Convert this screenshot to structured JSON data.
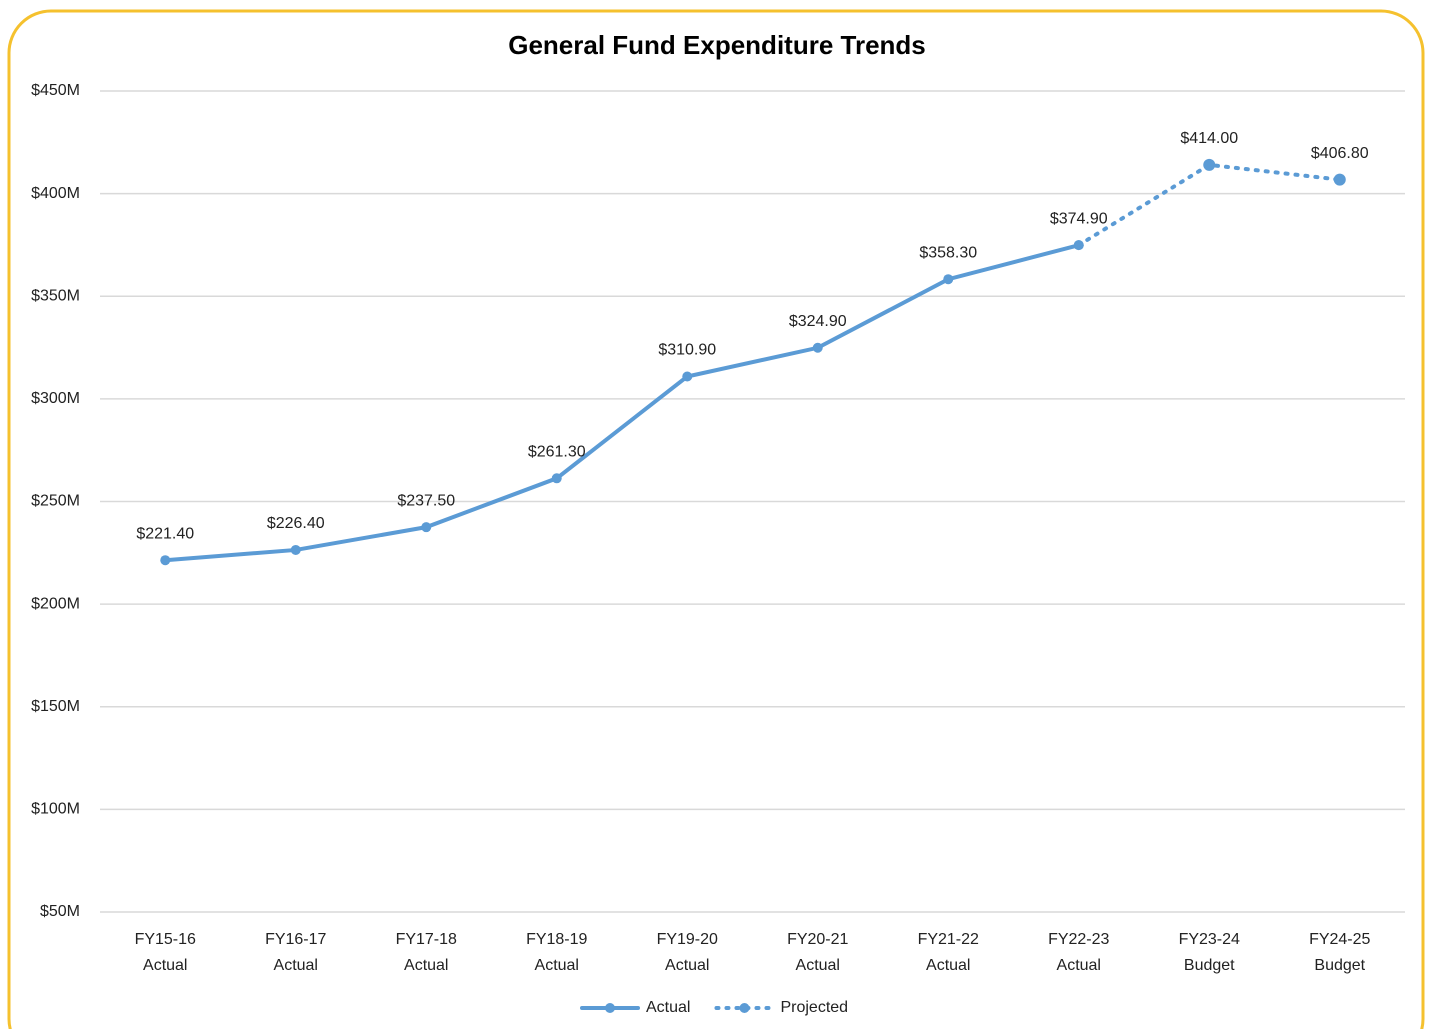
{
  "chart_data": {
    "type": "line",
    "title": "General Fund Expenditure Trends",
    "categories": [
      [
        "FY15-16",
        "Actual"
      ],
      [
        "FY16-17",
        "Actual"
      ],
      [
        "FY17-18",
        "Actual"
      ],
      [
        "FY18-19",
        "Actual"
      ],
      [
        "FY19-20",
        "Actual"
      ],
      [
        "FY20-21",
        "Actual"
      ],
      [
        "FY21-22",
        "Actual"
      ],
      [
        "FY22-23",
        "Actual"
      ],
      [
        "FY23-24",
        "Budget"
      ],
      [
        "FY24-25",
        "Budget"
      ]
    ],
    "series": [
      {
        "name": "Actual",
        "color": "#5b9bd5",
        "dash": "solid",
        "values": [
          221.4,
          226.4,
          237.5,
          261.3,
          310.9,
          324.9,
          358.3,
          374.9,
          null,
          null
        ],
        "value_labels": [
          "$221.40",
          "$226.40",
          "$237.50",
          "$261.30",
          "$310.90",
          "$324.90",
          "$358.30",
          "$374.90",
          null,
          null
        ]
      },
      {
        "name": "Projected",
        "color": "#5b9bd5",
        "dash": "dotted",
        "values": [
          null,
          null,
          null,
          null,
          null,
          null,
          null,
          374.9,
          414.0,
          406.8
        ],
        "value_labels": [
          null,
          null,
          null,
          null,
          null,
          null,
          null,
          null,
          "$414.00",
          "$406.80"
        ]
      }
    ],
    "ylim": [
      50,
      450
    ],
    "yticks": [
      {
        "value": 50,
        "label": "$50M"
      },
      {
        "value": 100,
        "label": "$100M"
      },
      {
        "value": 150,
        "label": "$150M"
      },
      {
        "value": 200,
        "label": "$200M"
      },
      {
        "value": 250,
        "label": "$250M"
      },
      {
        "value": 300,
        "label": "$300M"
      },
      {
        "value": 350,
        "label": "$350M"
      },
      {
        "value": 400,
        "label": "$400M"
      },
      {
        "value": 450,
        "label": "$450M"
      }
    ],
    "grid": true,
    "legend": "bottom"
  }
}
